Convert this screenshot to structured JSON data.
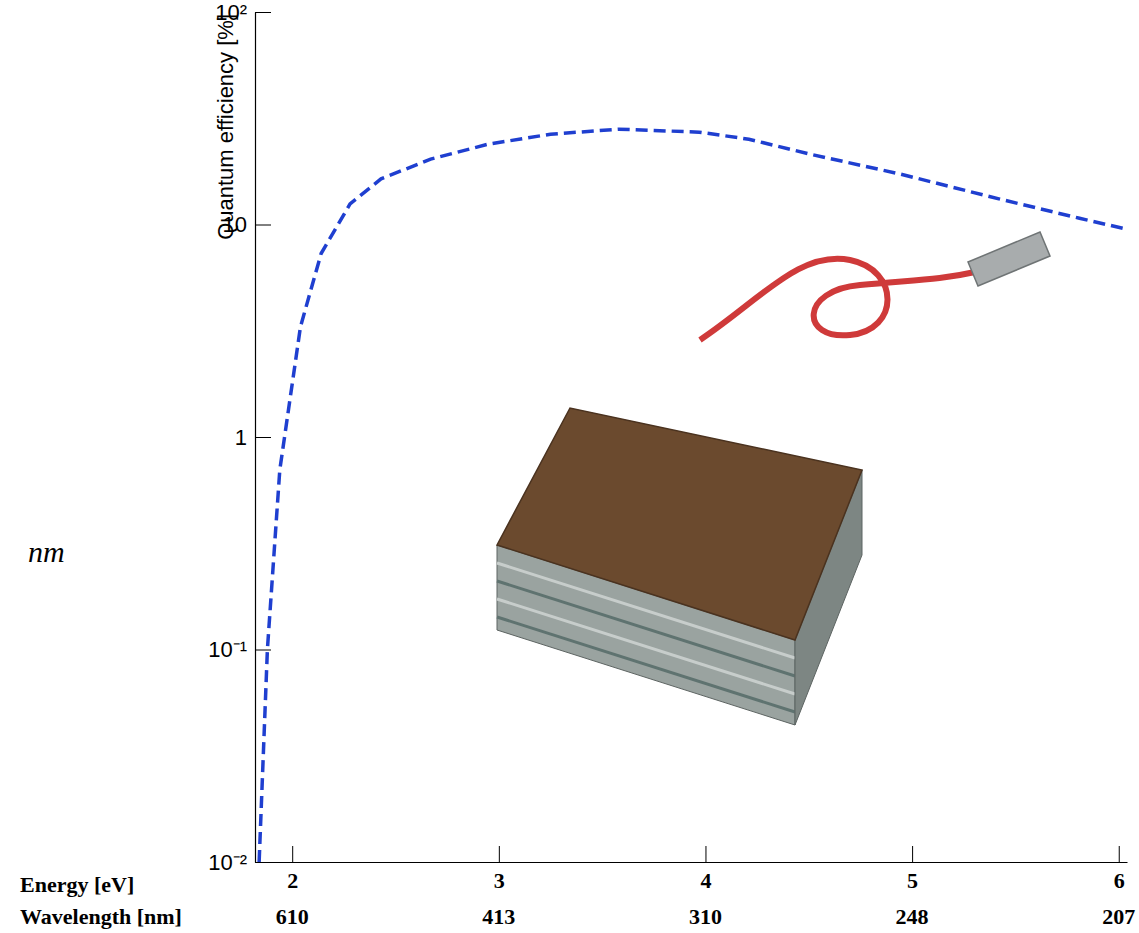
{
  "chart_data": {
    "type": "line",
    "y_label": "Quantum efficiency [%]",
    "x_label": "Energy [eV]",
    "wavelength_label": "Wavelength [nm]",
    "wavelengths": [
      610,
      413,
      310,
      248,
      207
    ],
    "annotations": [
      "nm"
    ],
    "x": [
      1.84,
      1.88,
      1.94,
      2.04,
      2.14,
      2.28,
      2.43,
      2.67,
      2.95,
      3.25,
      3.58,
      3.97,
      4.21,
      4.5,
      4.94,
      5.42,
      5.81,
      6.02
    ],
    "values": [
      0.01,
      0.1,
      0.7,
      3.3,
      7.3,
      12.5,
      16.4,
      20.3,
      23.9,
      26.6,
      28.1,
      27.2,
      25.2,
      21.5,
      17.3,
      13.2,
      10.7,
      9.6
    ],
    "color": "#1f3fd0",
    "line_style": "dashed",
    "marker": "none",
    "log": "y",
    "grid": false,
    "xlim": [
      1.82,
      6.04
    ],
    "xticks": [
      2,
      3,
      4,
      5,
      6
    ],
    "ylim": [
      0.01,
      100
    ],
    "yticks": [
      {
        "value": 0.01,
        "label": "10⁻²"
      },
      {
        "value": 0.1,
        "label": "10⁻¹"
      },
      1,
      10,
      {
        "value": 100,
        "label": "10²"
      }
    ]
  }
}
